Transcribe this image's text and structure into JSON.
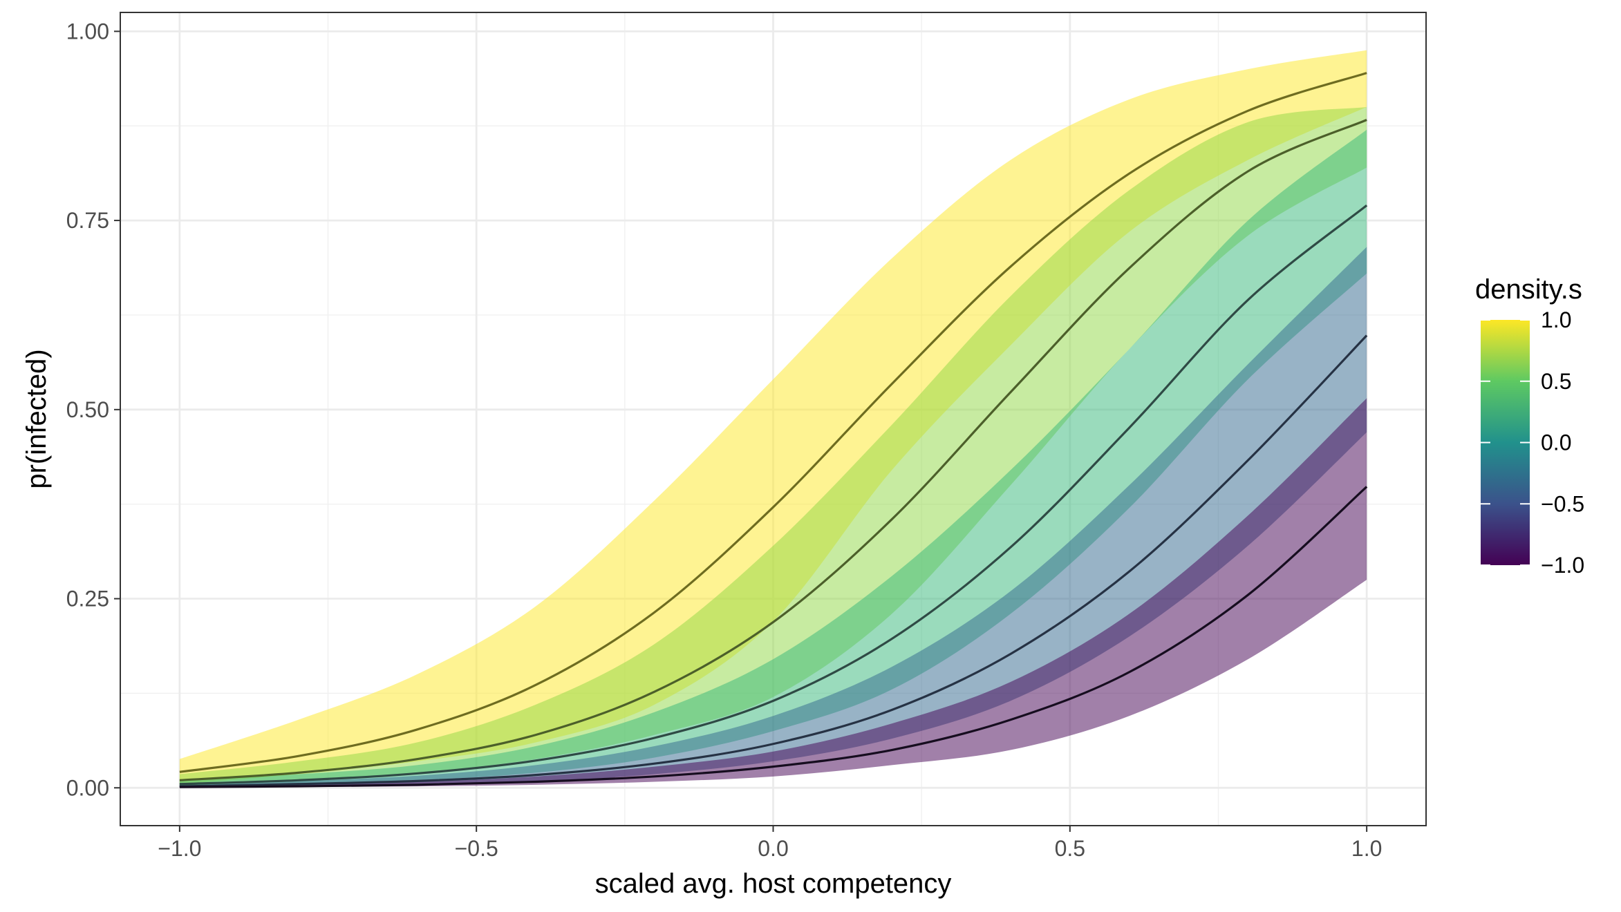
{
  "chart_data": {
    "type": "line",
    "title": "",
    "xlabel": "scaled avg. host competency",
    "ylabel": "pr(infected)",
    "xlim": [
      -1.1,
      1.1
    ],
    "ylim": [
      -0.05,
      1.025
    ],
    "x_ticks": [
      -1.0,
      -0.5,
      0.0,
      0.5,
      1.0
    ],
    "x_tick_labels": [
      "−1.0",
      "−0.5",
      "0.0",
      "0.5",
      "1.0"
    ],
    "y_ticks": [
      0.0,
      0.25,
      0.5,
      0.75,
      1.0
    ],
    "y_tick_labels": [
      "0.00",
      "0.25",
      "0.50",
      "0.75",
      "1.00"
    ],
    "grid": true,
    "legend": {
      "title": "density.s",
      "position": "right",
      "type": "colorbar",
      "range": [
        -1.0,
        1.0
      ],
      "ticks": [
        1.0,
        0.5,
        0.0,
        -0.5,
        -1.0
      ],
      "tick_labels": [
        "1.0",
        "0.5",
        "0.0",
        "−0.5",
        "−1.0"
      ],
      "colormap": [
        "#440154",
        "#3b528b",
        "#21918c",
        "#5ec962",
        "#fde725"
      ]
    },
    "x": [
      -1.0,
      -0.8,
      -0.6,
      -0.4,
      -0.2,
      0.0,
      0.2,
      0.4,
      0.6,
      0.8,
      1.0
    ],
    "series": [
      {
        "density": 1.0,
        "color": "#fde725",
        "line_color": "#6e6c20",
        "values": [
          0.021,
          0.042,
          0.077,
          0.136,
          0.232,
          0.371,
          0.534,
          0.689,
          0.812,
          0.895,
          0.945
        ],
        "lower": [
          0.005,
          0.018,
          0.035,
          0.06,
          0.11,
          0.22,
          0.42,
          0.585,
          0.735,
          0.83,
          0.9
        ],
        "upper": [
          0.038,
          0.09,
          0.15,
          0.24,
          0.38,
          0.54,
          0.7,
          0.83,
          0.91,
          0.95,
          0.975
        ]
      },
      {
        "density": 0.5,
        "color": "#8fd744",
        "line_color": "#4c5f2a",
        "values": [
          0.01,
          0.02,
          0.038,
          0.07,
          0.127,
          0.219,
          0.355,
          0.523,
          0.687,
          0.815,
          0.883
        ],
        "lower": [
          0.003,
          0.01,
          0.02,
          0.038,
          0.07,
          0.12,
          0.23,
          0.4,
          0.58,
          0.73,
          0.82
        ],
        "upper": [
          0.018,
          0.035,
          0.06,
          0.11,
          0.19,
          0.32,
          0.48,
          0.65,
          0.79,
          0.88,
          0.9
        ]
      },
      {
        "density": 0.0,
        "color": "#35b779",
        "line_color": "#2f4a45",
        "values": [
          0.005,
          0.01,
          0.019,
          0.036,
          0.066,
          0.115,
          0.197,
          0.318,
          0.476,
          0.645,
          0.77
        ],
        "lower": [
          0.002,
          0.005,
          0.01,
          0.02,
          0.04,
          0.075,
          0.13,
          0.23,
          0.37,
          0.54,
          0.68
        ],
        "upper": [
          0.01,
          0.018,
          0.03,
          0.055,
          0.1,
          0.17,
          0.28,
          0.42,
          0.58,
          0.75,
          0.87
        ]
      },
      {
        "density": -0.5,
        "color": "#31688e",
        "line_color": "#263244",
        "values": [
          0.002,
          0.005,
          0.009,
          0.017,
          0.032,
          0.058,
          0.103,
          0.177,
          0.286,
          0.433,
          0.598
        ],
        "lower": [
          0.001,
          0.002,
          0.004,
          0.008,
          0.018,
          0.035,
          0.065,
          0.115,
          0.2,
          0.32,
          0.47
        ],
        "upper": [
          0.005,
          0.009,
          0.016,
          0.03,
          0.055,
          0.095,
          0.16,
          0.26,
          0.4,
          0.56,
          0.715
        ]
      },
      {
        "density": -1.0,
        "color": "#440154",
        "line_color": "#160d1f",
        "values": [
          0.001,
          0.002,
          0.004,
          0.008,
          0.015,
          0.028,
          0.05,
          0.09,
          0.153,
          0.255,
          0.398
        ],
        "lower": [
          0.0,
          0.001,
          0.002,
          0.004,
          0.008,
          0.015,
          0.03,
          0.05,
          0.095,
          0.17,
          0.275
        ],
        "upper": [
          0.003,
          0.005,
          0.008,
          0.015,
          0.028,
          0.048,
          0.085,
          0.14,
          0.23,
          0.36,
          0.515
        ]
      }
    ]
  }
}
